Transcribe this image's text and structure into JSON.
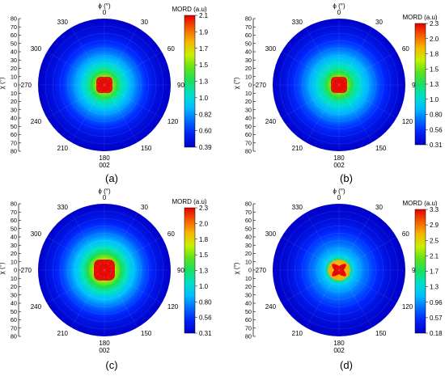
{
  "chart_data": [
    {
      "type": "heatmap",
      "subtype": "polar",
      "caption": "(a)",
      "phi_label": "ϕ (°)",
      "chi_label": "χ (°)",
      "reflection": "002",
      "colorbar_title": "MORD (a.u)",
      "colorbar_ticks": [
        "2.1",
        "1.9",
        "1.7",
        "1.5",
        "1.3",
        "1.0",
        "0.82",
        "0.60",
        "0.39"
      ],
      "phi_ticks": [
        "0",
        "30",
        "60",
        "90",
        "120",
        "150",
        "180",
        "210",
        "240",
        "270",
        "300",
        "330"
      ],
      "chi_ticks": [
        "80",
        "70",
        "60",
        "50",
        "40",
        "30",
        "20",
        "10",
        "0",
        "10",
        "20",
        "30",
        "40",
        "50",
        "60",
        "70",
        "80"
      ],
      "range": [
        0.39,
        2.1
      ],
      "profile": [
        [
          0,
          2.1
        ],
        [
          5,
          2.0
        ],
        [
          10,
          1.55
        ],
        [
          20,
          1.2
        ],
        [
          35,
          0.9
        ],
        [
          55,
          0.62
        ],
        [
          70,
          0.48
        ],
        [
          90,
          0.39
        ]
      ],
      "central_feature": "blob"
    },
    {
      "type": "heatmap",
      "subtype": "polar",
      "caption": "(b)",
      "phi_label": "ϕ (°)",
      "chi_label": "χ (°)",
      "reflection": "002",
      "colorbar_title": "MORD (a.u)",
      "colorbar_ticks": [
        "2.3",
        "2.0",
        "1.8",
        "1.5",
        "1.3",
        "1.0",
        "0.80",
        "0.56",
        "0.31"
      ],
      "phi_ticks": [
        "0",
        "30",
        "60",
        "90",
        "120",
        "150",
        "180",
        "210",
        "240",
        "270",
        "300",
        "330"
      ],
      "chi_ticks": [
        "80",
        "70",
        "60",
        "50",
        "40",
        "30",
        "20",
        "10",
        "0",
        "10",
        "20",
        "30",
        "40",
        "50",
        "60",
        "70",
        "80"
      ],
      "range": [
        0.31,
        2.3
      ],
      "profile": [
        [
          0,
          2.3
        ],
        [
          5,
          2.1
        ],
        [
          10,
          1.65
        ],
        [
          20,
          1.25
        ],
        [
          35,
          0.95
        ],
        [
          55,
          0.62
        ],
        [
          70,
          0.45
        ],
        [
          90,
          0.31
        ]
      ],
      "central_feature": "blob"
    },
    {
      "type": "heatmap",
      "subtype": "polar",
      "caption": "(c)",
      "phi_label": "ϕ (°)",
      "chi_label": "χ (°)",
      "reflection": "002",
      "colorbar_title": "MORD (a.u)",
      "colorbar_ticks": [
        "2.3",
        "2.0",
        "1.8",
        "1.5",
        "1.3",
        "1.0",
        "0.80",
        "0.56",
        "0.31"
      ],
      "phi_ticks": [
        "0",
        "30",
        "60",
        "90",
        "120",
        "150",
        "180",
        "210",
        "240",
        "270",
        "300",
        "330"
      ],
      "chi_ticks": [
        "80",
        "70",
        "60",
        "50",
        "40",
        "30",
        "20",
        "10",
        "0",
        "10",
        "20",
        "30",
        "40",
        "50",
        "60",
        "70",
        "80"
      ],
      "range": [
        0.31,
        2.3
      ],
      "profile": [
        [
          0,
          2.3
        ],
        [
          7,
          2.2
        ],
        [
          14,
          1.7
        ],
        [
          24,
          1.3
        ],
        [
          38,
          0.95
        ],
        [
          55,
          0.65
        ],
        [
          70,
          0.45
        ],
        [
          90,
          0.31
        ]
      ],
      "central_feature": "blob"
    },
    {
      "type": "heatmap",
      "subtype": "polar",
      "caption": "(d)",
      "phi_label": "ϕ (°)",
      "chi_label": "χ (°)",
      "reflection": "002",
      "colorbar_title": "MORD (a.u)",
      "colorbar_ticks": [
        "3.3",
        "2.9",
        "2.5",
        "2.1",
        "1.7",
        "1.3",
        "0.96",
        "0.57",
        "0.18"
      ],
      "phi_ticks": [
        "0",
        "30",
        "60",
        "90",
        "120",
        "150",
        "180",
        "210",
        "240",
        "270",
        "300",
        "330"
      ],
      "chi_ticks": [
        "80",
        "70",
        "60",
        "50",
        "40",
        "30",
        "20",
        "10",
        "0",
        "10",
        "20",
        "30",
        "40",
        "50",
        "60",
        "70",
        "80"
      ],
      "range": [
        0.18,
        3.3
      ],
      "profile": [
        [
          0,
          3.2
        ],
        [
          6,
          2.9
        ],
        [
          12,
          1.8
        ],
        [
          20,
          1.2
        ],
        [
          35,
          0.85
        ],
        [
          55,
          0.5
        ],
        [
          70,
          0.3
        ],
        [
          90,
          0.18
        ]
      ],
      "central_feature": "cross"
    }
  ]
}
